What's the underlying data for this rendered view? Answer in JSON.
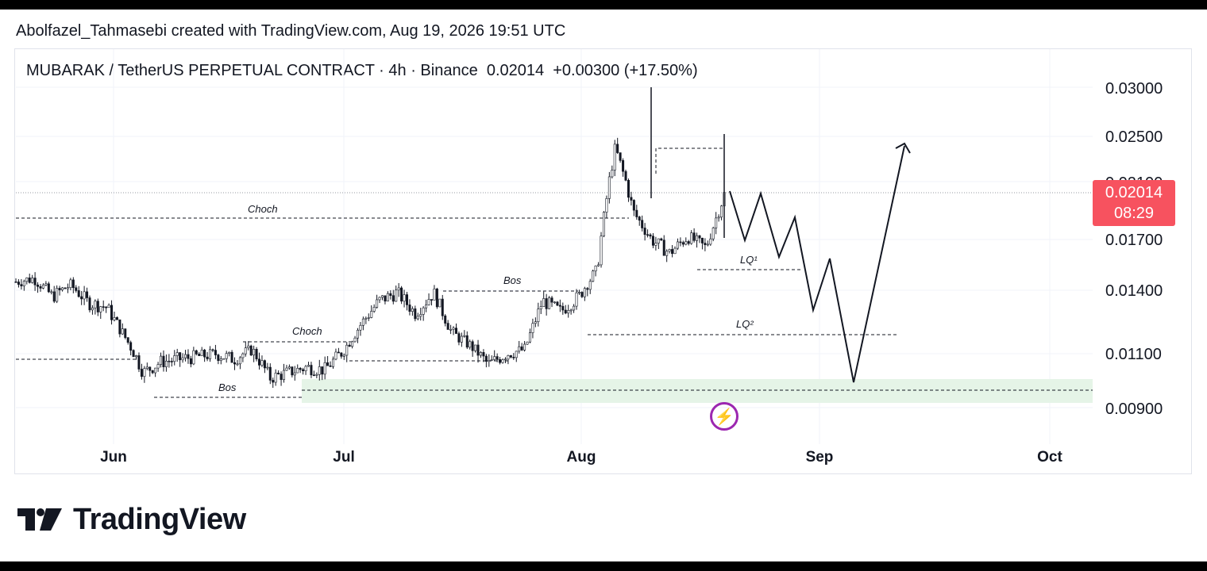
{
  "header": {
    "credit": "Abolfazel_Tahmasebi created with TradingView.com, Aug 19, 2026 19:51 UTC"
  },
  "symbol": {
    "name": "MUBARAK / TetherUS PERPETUAL CONTRACT · 4h · Binance",
    "price": "0.02014",
    "change": "+0.00300 (+17.50%)"
  },
  "price_label": {
    "value": "0.02014",
    "countdown": "08:29",
    "color": "#f7525f"
  },
  "branding": {
    "logo_text": "TradingView"
  },
  "chart_data": {
    "type": "line",
    "title": "MUBARAK / TetherUS PERPETUAL CONTRACT · 4h · Binance",
    "y_ticks": [
      "0.03000",
      "0.02500",
      "0.02100",
      "0.01700",
      "0.01400",
      "0.01100",
      "0.00900"
    ],
    "x_ticks": [
      "Jun",
      "Jul",
      "Aug",
      "Sep",
      "Oct"
    ],
    "series": [
      {
        "values_x": [
          "May 21",
          "May 23",
          "May 25",
          "May 27",
          "May 30",
          "Jun 1",
          "Jun 3",
          "Jun 5",
          "Jun 8",
          "Jun 10",
          "Jun 13",
          "Jun 16",
          "Jun 19",
          "Jun 22",
          "Jun 24",
          "Jun 26",
          "Jun 28",
          "Jul 1",
          "Jul 3",
          "Jul 6",
          "Jul 9",
          "Jul 12",
          "Jul 14",
          "Jul 16",
          "Jul 19",
          "Jul 22",
          "Jul 25",
          "Jul 28",
          "Jul 31",
          "Aug 2",
          "Aug 4",
          "Aug 6",
          "Aug 8",
          "Aug 9",
          "Aug 10",
          "Aug 12",
          "Aug 14",
          "Aug 16",
          "Aug 18",
          "Aug 19"
        ],
        "values": [
          0.0145,
          0.0147,
          0.0137,
          0.0143,
          0.0134,
          0.0132,
          0.0118,
          0.0103,
          0.0107,
          0.0108,
          0.0109,
          0.011,
          0.0108,
          0.0112,
          0.0101,
          0.0103,
          0.0105,
          0.0104,
          0.0111,
          0.0124,
          0.0135,
          0.0139,
          0.0129,
          0.0139,
          0.012,
          0.0114,
          0.0106,
          0.011,
          0.0112,
          0.0135,
          0.013,
          0.0137,
          0.0152,
          0.024,
          0.0189,
          0.017,
          0.0162,
          0.0172,
          0.0165,
          0.0201
        ]
      }
    ],
    "projection": {
      "name": "projected path",
      "x": [
        "Aug 19",
        "Aug 20",
        "Aug 22",
        "Aug 24",
        "Aug 26",
        "Aug 28",
        "Aug 29",
        "Sep 2",
        "Sep 5",
        "Sep 12"
      ],
      "values": [
        0.0203,
        0.0172,
        0.02,
        0.016,
        0.0185,
        0.0128,
        0.015,
        0.0096,
        0.014,
        0.0247
      ]
    },
    "annotations": [
      {
        "label": "Choch",
        "y": 0.0185
      },
      {
        "label": "Bos",
        "y": 0.0142
      },
      {
        "label": "Choch",
        "y": 0.0116
      },
      {
        "label": "Bos",
        "y": 0.0093
      },
      {
        "label": "LQ¹",
        "y": 0.0155
      },
      {
        "label": "LQ²",
        "y": 0.0118
      }
    ],
    "zone": {
      "from": 0.0093,
      "to": 0.0099,
      "color": "#e5f4e7"
    },
    "current_price": 0.02014,
    "grid": true
  }
}
